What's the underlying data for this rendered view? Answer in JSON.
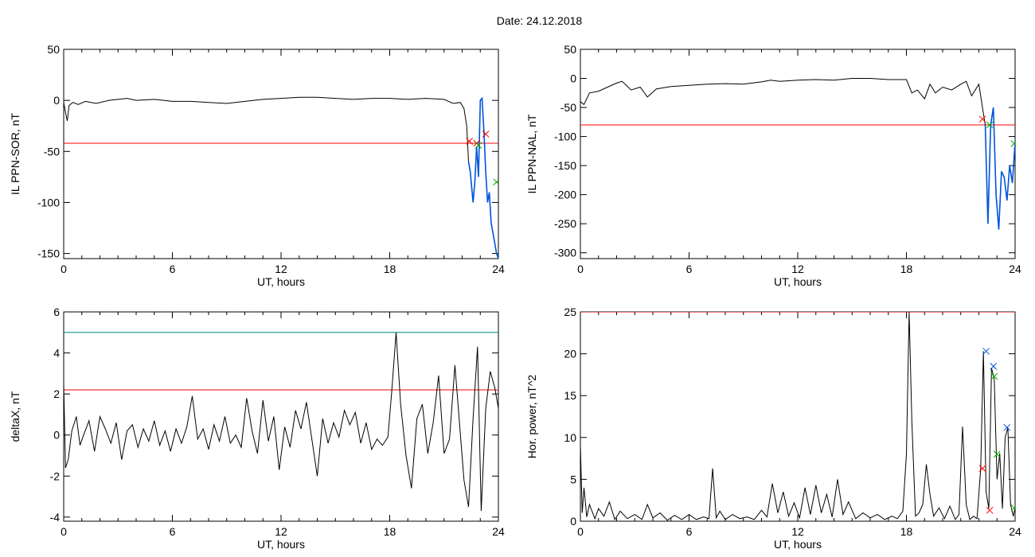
{
  "figure_title": "Date:  24.12.2018",
  "colors": {
    "trace": "#000000",
    "threshold_red": "#ff0000",
    "threshold_teal": "#008080",
    "highlight_blue": "#0055dd",
    "marker_red": "#ff0000",
    "marker_green": "#00aa00",
    "marker_blue": "#0055dd"
  },
  "chart_data": [
    {
      "id": "sor",
      "type": "line",
      "title": "",
      "xlabel": "UT, hours",
      "ylabel": "IL PPN-SOR, nT",
      "xlim": [
        0,
        24
      ],
      "ylim": [
        -155,
        50
      ],
      "xticks": [
        "0",
        "6",
        "12",
        "18",
        "24"
      ],
      "yticks": [
        {
          "v": 50,
          "label": "50"
        },
        {
          "v": 0,
          "label": "0"
        },
        {
          "v": -50,
          "label": "-50"
        },
        {
          "v": -100,
          "label": "-100"
        },
        {
          "v": -150,
          "label": "-150"
        }
      ],
      "threshold": -42,
      "threshold_color": "red",
      "series": [
        {
          "x": [
            0,
            0.1,
            0.2,
            0.3,
            0.5,
            0.8,
            1.2,
            1.8,
            2.5,
            3,
            3.5,
            4,
            5,
            6,
            7,
            8,
            9,
            10,
            11,
            12,
            13,
            14,
            15,
            16,
            17,
            18,
            19,
            20,
            21,
            21.5,
            21.9,
            22.1,
            22.25,
            22.35,
            22.45,
            22.6,
            22.7,
            22.8,
            22.9,
            23.0,
            23.1,
            23.2,
            23.3,
            23.4,
            23.5,
            23.6,
            23.7,
            23.8,
            23.9,
            24
          ],
          "y": [
            -2,
            -12,
            -20,
            -5,
            -2,
            -4,
            -1,
            -3,
            0,
            1,
            2,
            0,
            1,
            -1,
            -1,
            -2,
            -3,
            -1,
            1,
            2,
            3,
            3,
            2,
            1,
            2,
            2,
            1,
            2,
            1,
            -3,
            -2,
            -8,
            -25,
            -60,
            -70,
            -100,
            -80,
            -45,
            -75,
            0,
            2,
            -30,
            -70,
            -100,
            -90,
            -120,
            -130,
            -140,
            -150,
            -155
          ]
        }
      ],
      "highlight_x_range": [
        22.3,
        24
      ],
      "markers": [
        {
          "x": 22.4,
          "y": -40,
          "color": "red"
        },
        {
          "x": 22.8,
          "y": -42,
          "color": "red"
        },
        {
          "x": 22.9,
          "y": -44,
          "color": "green"
        },
        {
          "x": 23.3,
          "y": -33,
          "color": "red"
        },
        {
          "x": 23.9,
          "y": -80,
          "color": "green"
        }
      ]
    },
    {
      "id": "nal",
      "type": "line",
      "title": "",
      "xlabel": "UT, hours",
      "ylabel": "IL PPN-NAL, nT",
      "xlim": [
        0,
        24
      ],
      "ylim": [
        -310,
        50
      ],
      "xticks": [
        "0",
        "6",
        "12",
        "18",
        "24"
      ],
      "yticks": [
        {
          "v": 50,
          "label": "50"
        },
        {
          "v": 0,
          "label": "0"
        },
        {
          "v": -50,
          "label": "-50"
        },
        {
          "v": -100,
          "label": "-100"
        },
        {
          "v": -150,
          "label": "-150"
        },
        {
          "v": -200,
          "label": "-200"
        },
        {
          "v": -250,
          "label": "-250"
        },
        {
          "v": -300,
          "label": "-300"
        }
      ],
      "threshold": -80,
      "threshold_color": "red",
      "series": [
        {
          "x": [
            0,
            0.2,
            0.5,
            1,
            1.5,
            2,
            2.3,
            2.8,
            3.3,
            3.7,
            4.2,
            5,
            6,
            7,
            8,
            9,
            10,
            10.5,
            11,
            12,
            13,
            14,
            15,
            16,
            17,
            18,
            18.3,
            18.6,
            19,
            19.3,
            19.6,
            20,
            20.5,
            21,
            21.3,
            21.6,
            22.0,
            22.2,
            22.35,
            22.5,
            22.65,
            22.8,
            22.95,
            23.1,
            23.25,
            23.4,
            23.55,
            23.7,
            23.85,
            24
          ],
          "y": [
            -40,
            -45,
            -25,
            -22,
            -15,
            -8,
            -5,
            -20,
            -15,
            -32,
            -18,
            -14,
            -12,
            -10,
            -9,
            -10,
            -6,
            -3,
            -5,
            -3,
            -2,
            -3,
            0,
            0,
            -2,
            -2,
            -25,
            -20,
            -35,
            -10,
            -25,
            -15,
            -20,
            -10,
            -5,
            -30,
            -10,
            -50,
            -80,
            -250,
            -80,
            -50,
            -200,
            -260,
            -160,
            -170,
            -210,
            -150,
            -180,
            -110
          ]
        }
      ],
      "highlight_x_range": [
        22.3,
        24
      ],
      "markers": [
        {
          "x": 22.2,
          "y": -70,
          "color": "red"
        },
        {
          "x": 22.6,
          "y": -80,
          "color": "green"
        },
        {
          "x": 23.95,
          "y": -112,
          "color": "green"
        }
      ]
    },
    {
      "id": "deltax",
      "type": "line",
      "title": "",
      "xlabel": "UT, hours",
      "ylabel": "deltaX, nT",
      "xlim": [
        0,
        24
      ],
      "ylim": [
        -4.2,
        6
      ],
      "xticks": [
        "0",
        "6",
        "12",
        "18",
        "24"
      ],
      "yticks": [
        {
          "v": 6,
          "label": "6"
        },
        {
          "v": 4,
          "label": "4"
        },
        {
          "v": 2,
          "label": "2"
        },
        {
          "v": 0,
          "label": "0"
        },
        {
          "v": -2,
          "label": "-2"
        },
        {
          "v": -4,
          "label": "-4"
        }
      ],
      "threshold": 2.2,
      "threshold_color": "red",
      "threshold2": 5.0,
      "threshold2_color": "teal",
      "series": [
        {
          "x": [
            0,
            0.1,
            0.25,
            0.45,
            0.7,
            0.9,
            1.1,
            1.4,
            1.7,
            2.0,
            2.3,
            2.6,
            2.9,
            3.2,
            3.5,
            3.8,
            4.1,
            4.4,
            4.7,
            5.0,
            5.3,
            5.6,
            5.9,
            6.2,
            6.5,
            6.8,
            7.1,
            7.4,
            7.7,
            8.0,
            8.3,
            8.6,
            8.9,
            9.2,
            9.5,
            9.8,
            10.1,
            10.4,
            10.7,
            11.0,
            11.3,
            11.6,
            11.9,
            12.2,
            12.5,
            12.8,
            13.1,
            13.4,
            13.7,
            14.0,
            14.3,
            14.6,
            14.9,
            15.2,
            15.5,
            15.8,
            16.1,
            16.4,
            16.7,
            17.0,
            17.3,
            17.6,
            17.9,
            18.1,
            18.35,
            18.6,
            18.9,
            19.2,
            19.5,
            19.8,
            20.1,
            20.4,
            20.7,
            21.0,
            21.3,
            21.6,
            21.85,
            22.1,
            22.35,
            22.6,
            22.85,
            23.05,
            23.3,
            23.55,
            23.8,
            24
          ],
          "y": [
            2.5,
            -1.6,
            -1.2,
            0.2,
            0.9,
            -0.5,
            0.0,
            0.7,
            -0.8,
            0.9,
            0.3,
            -0.4,
            0.6,
            -1.2,
            0.2,
            0.5,
            -0.6,
            0.3,
            -0.3,
            0.7,
            -0.5,
            0.2,
            -0.8,
            0.3,
            -0.4,
            0.4,
            1.9,
            -0.2,
            0.3,
            -0.7,
            0.5,
            -0.3,
            0.9,
            -0.4,
            0.0,
            -0.6,
            1.8,
            0.2,
            -0.9,
            1.7,
            -0.3,
            0.9,
            -1.7,
            0.4,
            -0.6,
            1.2,
            0.3,
            1.6,
            -0.2,
            -2.0,
            0.8,
            -0.4,
            0.6,
            -0.1,
            1.2,
            0.5,
            1.1,
            -0.4,
            0.6,
            -0.7,
            -0.2,
            -0.5,
            -0.1,
            2.0,
            5.0,
            1.5,
            -1.0,
            -2.6,
            0.8,
            1.5,
            -0.9,
            0.6,
            2.9,
            -0.9,
            -0.2,
            3.4,
            0.6,
            -2.2,
            -3.5,
            0.8,
            4.3,
            -3.7,
            1.3,
            3.1,
            2.3,
            1.3
          ]
        }
      ],
      "markers": []
    },
    {
      "id": "power",
      "type": "line",
      "title": "",
      "xlabel": "UT, hours",
      "ylabel": "Hor. power, nT^2",
      "xlim": [
        0,
        24
      ],
      "ylim": [
        0,
        25
      ],
      "xticks": [
        "0",
        "6",
        "12",
        "18",
        "24"
      ],
      "yticks": [
        {
          "v": 25,
          "label": "25"
        },
        {
          "v": 20,
          "label": "20"
        },
        {
          "v": 15,
          "label": "15"
        },
        {
          "v": 10,
          "label": "10"
        },
        {
          "v": 5,
          "label": "5"
        },
        {
          "v": 0,
          "label": "0"
        }
      ],
      "threshold": 25,
      "threshold_color": "red",
      "series": [
        {
          "x": [
            0,
            0.1,
            0.2,
            0.35,
            0.5,
            0.8,
            1.0,
            1.3,
            1.6,
            1.9,
            2.2,
            2.6,
            3.0,
            3.4,
            3.7,
            4.0,
            4.4,
            4.8,
            5.2,
            5.6,
            6.0,
            6.4,
            6.8,
            7.1,
            7.3,
            7.5,
            7.7,
            8.0,
            8.4,
            8.8,
            9.2,
            9.6,
            10.0,
            10.3,
            10.6,
            10.9,
            11.2,
            11.5,
            11.8,
            12.1,
            12.4,
            12.7,
            13.0,
            13.3,
            13.6,
            13.9,
            14.2,
            14.5,
            14.8,
            15.2,
            15.6,
            16.0,
            16.4,
            16.8,
            17.2,
            17.5,
            17.8,
            18.0,
            18.15,
            18.3,
            18.5,
            18.7,
            18.9,
            19.1,
            19.3,
            19.5,
            19.8,
            20.1,
            20.4,
            20.7,
            20.9,
            21.1,
            21.3,
            21.5,
            21.7,
            21.9,
            22.1,
            22.25,
            22.4,
            22.55,
            22.7,
            22.85,
            23.0,
            23.15,
            23.3,
            23.45,
            23.6,
            23.75,
            23.9,
            24
          ],
          "y": [
            9,
            1,
            4,
            0.5,
            2,
            0.3,
            1.5,
            0.6,
            2.3,
            0.2,
            1.2,
            0.3,
            0.8,
            0.2,
            2.0,
            0.4,
            1.0,
            0.1,
            0.7,
            0.2,
            0.8,
            0.2,
            0.5,
            0.3,
            6.3,
            0.4,
            1.2,
            0.2,
            0.8,
            0.3,
            0.5,
            0.2,
            1.3,
            0.5,
            4.5,
            1.0,
            3.5,
            0.6,
            2.2,
            0.4,
            4.0,
            0.8,
            4.3,
            1.0,
            3.2,
            0.5,
            5.0,
            0.8,
            2.3,
            0.3,
            1.0,
            0.4,
            0.8,
            0.2,
            0.6,
            0.3,
            1.2,
            8.0,
            25,
            12,
            0.6,
            1.0,
            2.0,
            6.8,
            3.2,
            0.6,
            1.6,
            0.3,
            1.8,
            0.2,
            0.8,
            11.3,
            2.0,
            0.2,
            0.6,
            0.3,
            6.3,
            20.3,
            3.5,
            1.5,
            18.3,
            17.0,
            5.0,
            8.1,
            1.5,
            10.0,
            11.2,
            2.0,
            0.6,
            1.6
          ]
        }
      ],
      "markers": [
        {
          "x": 22.2,
          "y": 6.3,
          "color": "red"
        },
        {
          "x": 22.4,
          "y": 20.3,
          "color": "blue"
        },
        {
          "x": 22.6,
          "y": 1.3,
          "color": "red"
        },
        {
          "x": 22.8,
          "y": 18.5,
          "color": "blue"
        },
        {
          "x": 22.85,
          "y": 17.3,
          "color": "green"
        },
        {
          "x": 23.0,
          "y": 8.0,
          "color": "green"
        },
        {
          "x": 23.55,
          "y": 11.2,
          "color": "blue"
        },
        {
          "x": 23.95,
          "y": 1.6,
          "color": "green"
        }
      ]
    }
  ]
}
